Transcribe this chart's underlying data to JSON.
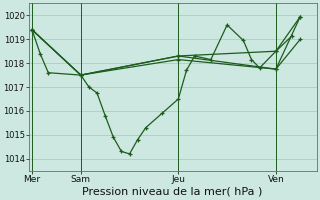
{
  "background_color": "#cce8e0",
  "grid_color": "#aacccc",
  "line_color": "#1e5c1e",
  "xlabel": "Pression niveau de la mer( hPa )",
  "xlabel_fontsize": 8,
  "ylim": [
    1013.5,
    1020.5
  ],
  "yticks": [
    1014,
    1015,
    1016,
    1017,
    1018,
    1019,
    1020
  ],
  "ytick_fontsize": 6,
  "day_labels": [
    "Mer",
    "Sam",
    "Jeu",
    "Ven"
  ],
  "day_positions": [
    0,
    3,
    9,
    15
  ],
  "xtick_fontsize": 6.5,
  "xlim": [
    -0.2,
    17.5
  ],
  "line1_x": [
    0,
    0.5,
    1,
    3,
    3.5,
    4,
    4.5,
    5,
    5.5,
    6,
    6.5,
    7,
    8,
    9,
    9.5,
    10,
    11,
    12,
    13,
    13.5,
    14,
    15,
    16
  ],
  "line1_y": [
    1019.4,
    1018.4,
    1017.6,
    1017.5,
    1017.0,
    1016.75,
    1015.8,
    1014.9,
    1014.3,
    1014.2,
    1014.8,
    1015.3,
    1015.9,
    1016.5,
    1017.7,
    1018.3,
    1018.15,
    1019.6,
    1018.95,
    1018.15,
    1017.8,
    1018.5,
    1019.15
  ],
  "line2_x": [
    0,
    3,
    9,
    15,
    16.5
  ],
  "line2_y": [
    1019.4,
    1017.5,
    1018.3,
    1018.5,
    1019.95
  ],
  "line3_x": [
    0,
    3,
    9,
    15,
    16.5
  ],
  "line3_y": [
    1019.4,
    1017.5,
    1018.15,
    1017.75,
    1019.0
  ],
  "line4_x": [
    0,
    3,
    9,
    15,
    16.5
  ],
  "line4_y": [
    1019.4,
    1017.5,
    1018.3,
    1017.75,
    1019.95
  ],
  "vline_x": [
    0,
    3,
    9,
    15
  ],
  "figsize": [
    3.2,
    2.0
  ],
  "dpi": 100
}
